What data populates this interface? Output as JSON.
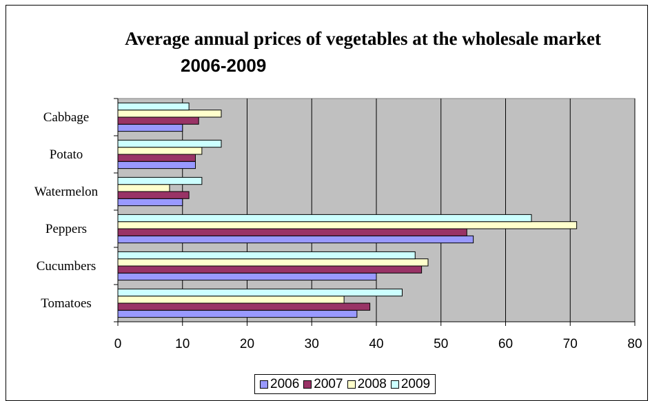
{
  "chart_data": {
    "type": "bar",
    "orientation": "horizontal",
    "title": "Average annual prices of vegetables at the wholesale market",
    "subtitle": "2006-2009",
    "categories": [
      "Tomatoes",
      "Cucumbers",
      "Peppers",
      "Watermelon",
      "Potato",
      "Cabbage"
    ],
    "series": [
      {
        "name": "2006",
        "color": "#9999FF",
        "values": [
          37,
          40,
          55,
          10,
          12,
          10
        ]
      },
      {
        "name": "2007",
        "color": "#993366",
        "values": [
          39,
          47,
          54,
          11,
          12,
          12.5
        ]
      },
      {
        "name": "2008",
        "color": "#FFFFCC",
        "values": [
          35,
          48,
          71,
          8,
          13,
          16
        ]
      },
      {
        "name": "2009",
        "color": "#CCFFFF",
        "values": [
          44,
          46,
          64,
          13,
          16,
          11
        ]
      }
    ],
    "xlim": [
      0,
      80
    ],
    "xticks": [
      "0",
      "10",
      "20",
      "30",
      "40",
      "50",
      "60",
      "70",
      "80"
    ],
    "plot_background": "#C0C0C0",
    "grid": true,
    "legend_position": "bottom"
  }
}
